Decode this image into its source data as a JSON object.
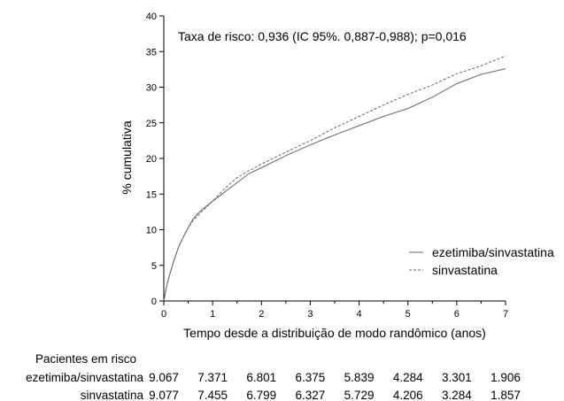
{
  "chart_data": {
    "type": "line",
    "annotation": "Taxa de risco: 0,936 (IC 95%. 0,887-0,988); p=0,016",
    "xlabel": "Tempo desde a distribuição de modo randômico (anos)",
    "ylabel": "% cumulativa",
    "xlim": [
      0,
      7
    ],
    "ylim": [
      0,
      40
    ],
    "x_ticks": [
      "0",
      "1",
      "2",
      "3",
      "4",
      "5",
      "6",
      "7"
    ],
    "y_ticks": [
      "0",
      "5",
      "10",
      "15",
      "20",
      "25",
      "30",
      "35",
      "40"
    ],
    "grid": false,
    "legend_position": "right",
    "series": [
      {
        "name": "ezetimiba/sinvastatina",
        "style": "solid",
        "color": "#666666",
        "points": [
          [
            0,
            0
          ],
          [
            0.05,
            1.8
          ],
          [
            0.1,
            3.2
          ],
          [
            0.2,
            5.5
          ],
          [
            0.3,
            7.5
          ],
          [
            0.4,
            9.0
          ],
          [
            0.5,
            10.3
          ],
          [
            0.6,
            11.5
          ],
          [
            0.7,
            12.3
          ],
          [
            0.8,
            12.9
          ],
          [
            1.0,
            14.0
          ],
          [
            1.25,
            15.3
          ],
          [
            1.5,
            16.6
          ],
          [
            1.75,
            17.9
          ],
          [
            2.0,
            18.7
          ],
          [
            2.5,
            20.4
          ],
          [
            3.0,
            21.9
          ],
          [
            3.5,
            23.3
          ],
          [
            4.0,
            24.6
          ],
          [
            4.5,
            25.9
          ],
          [
            5.0,
            27.0
          ],
          [
            5.5,
            28.6
          ],
          [
            6.0,
            30.5
          ],
          [
            6.5,
            31.8
          ],
          [
            7.0,
            32.6
          ]
        ]
      },
      {
        "name": "sinvastatina",
        "style": "dashed",
        "color": "#666666",
        "points": [
          [
            0,
            0
          ],
          [
            0.05,
            1.8
          ],
          [
            0.1,
            3.2
          ],
          [
            0.2,
            5.5
          ],
          [
            0.3,
            7.5
          ],
          [
            0.4,
            9.0
          ],
          [
            0.5,
            10.3
          ],
          [
            0.6,
            11.3
          ],
          [
            0.7,
            12.0
          ],
          [
            0.8,
            12.7
          ],
          [
            1.0,
            14.0
          ],
          [
            1.25,
            15.8
          ],
          [
            1.5,
            17.3
          ],
          [
            1.75,
            18.3
          ],
          [
            2.0,
            19.2
          ],
          [
            2.5,
            20.9
          ],
          [
            3.0,
            22.5
          ],
          [
            3.5,
            24.3
          ],
          [
            4.0,
            25.9
          ],
          [
            4.5,
            27.5
          ],
          [
            5.0,
            29.0
          ],
          [
            5.5,
            30.3
          ],
          [
            6.0,
            31.9
          ],
          [
            6.5,
            33.0
          ],
          [
            7.0,
            34.4
          ]
        ]
      }
    ],
    "risk_table": {
      "header": "Pacientes em risco",
      "rows": [
        {
          "label": "ezetimiba/sinvastatina",
          "values": [
            "9.067",
            "7.371",
            "6.801",
            "6.375",
            "5.839",
            "4.284",
            "3.301",
            "1.906"
          ]
        },
        {
          "label": "sinvastatina",
          "values": [
            "9.077",
            "7.455",
            "6.799",
            "6.327",
            "5.729",
            "4.206",
            "3.284",
            "1.857"
          ]
        }
      ]
    }
  }
}
